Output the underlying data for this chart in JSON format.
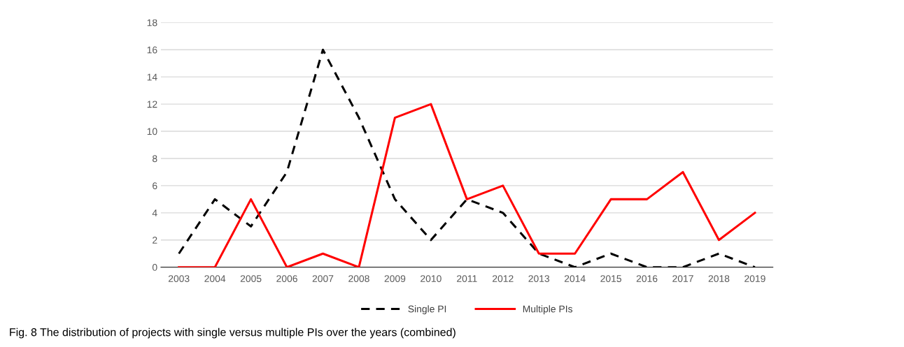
{
  "chart_data": {
    "type": "line",
    "categories": [
      "2003",
      "2004",
      "2005",
      "2006",
      "2007",
      "2008",
      "2009",
      "2010",
      "2011",
      "2012",
      "2013",
      "2014",
      "2015",
      "2016",
      "2017",
      "2018",
      "2019"
    ],
    "series": [
      {
        "name": "Single PI",
        "color": "#000000",
        "line_style": "dashed",
        "values": [
          1,
          5,
          3,
          7,
          16,
          11,
          5,
          2,
          5,
          4,
          1,
          0,
          1,
          0,
          0,
          1,
          0
        ]
      },
      {
        "name": "Multiple PIs",
        "color": "#ff0000",
        "line_style": "solid",
        "values": [
          0,
          0,
          5,
          0,
          1,
          0,
          11,
          12,
          5,
          6,
          1,
          1,
          5,
          5,
          7,
          2,
          4
        ]
      }
    ],
    "ylim": [
      0,
      18
    ],
    "yticks": [
      0,
      2,
      4,
      6,
      8,
      10,
      12,
      14,
      16,
      18
    ],
    "grid": "y",
    "legend": "bottom",
    "marker": "none",
    "annotations": [
      "Fig. 8 The distribution of projects with single versus multiple PIs over the years (combined)"
    ]
  }
}
